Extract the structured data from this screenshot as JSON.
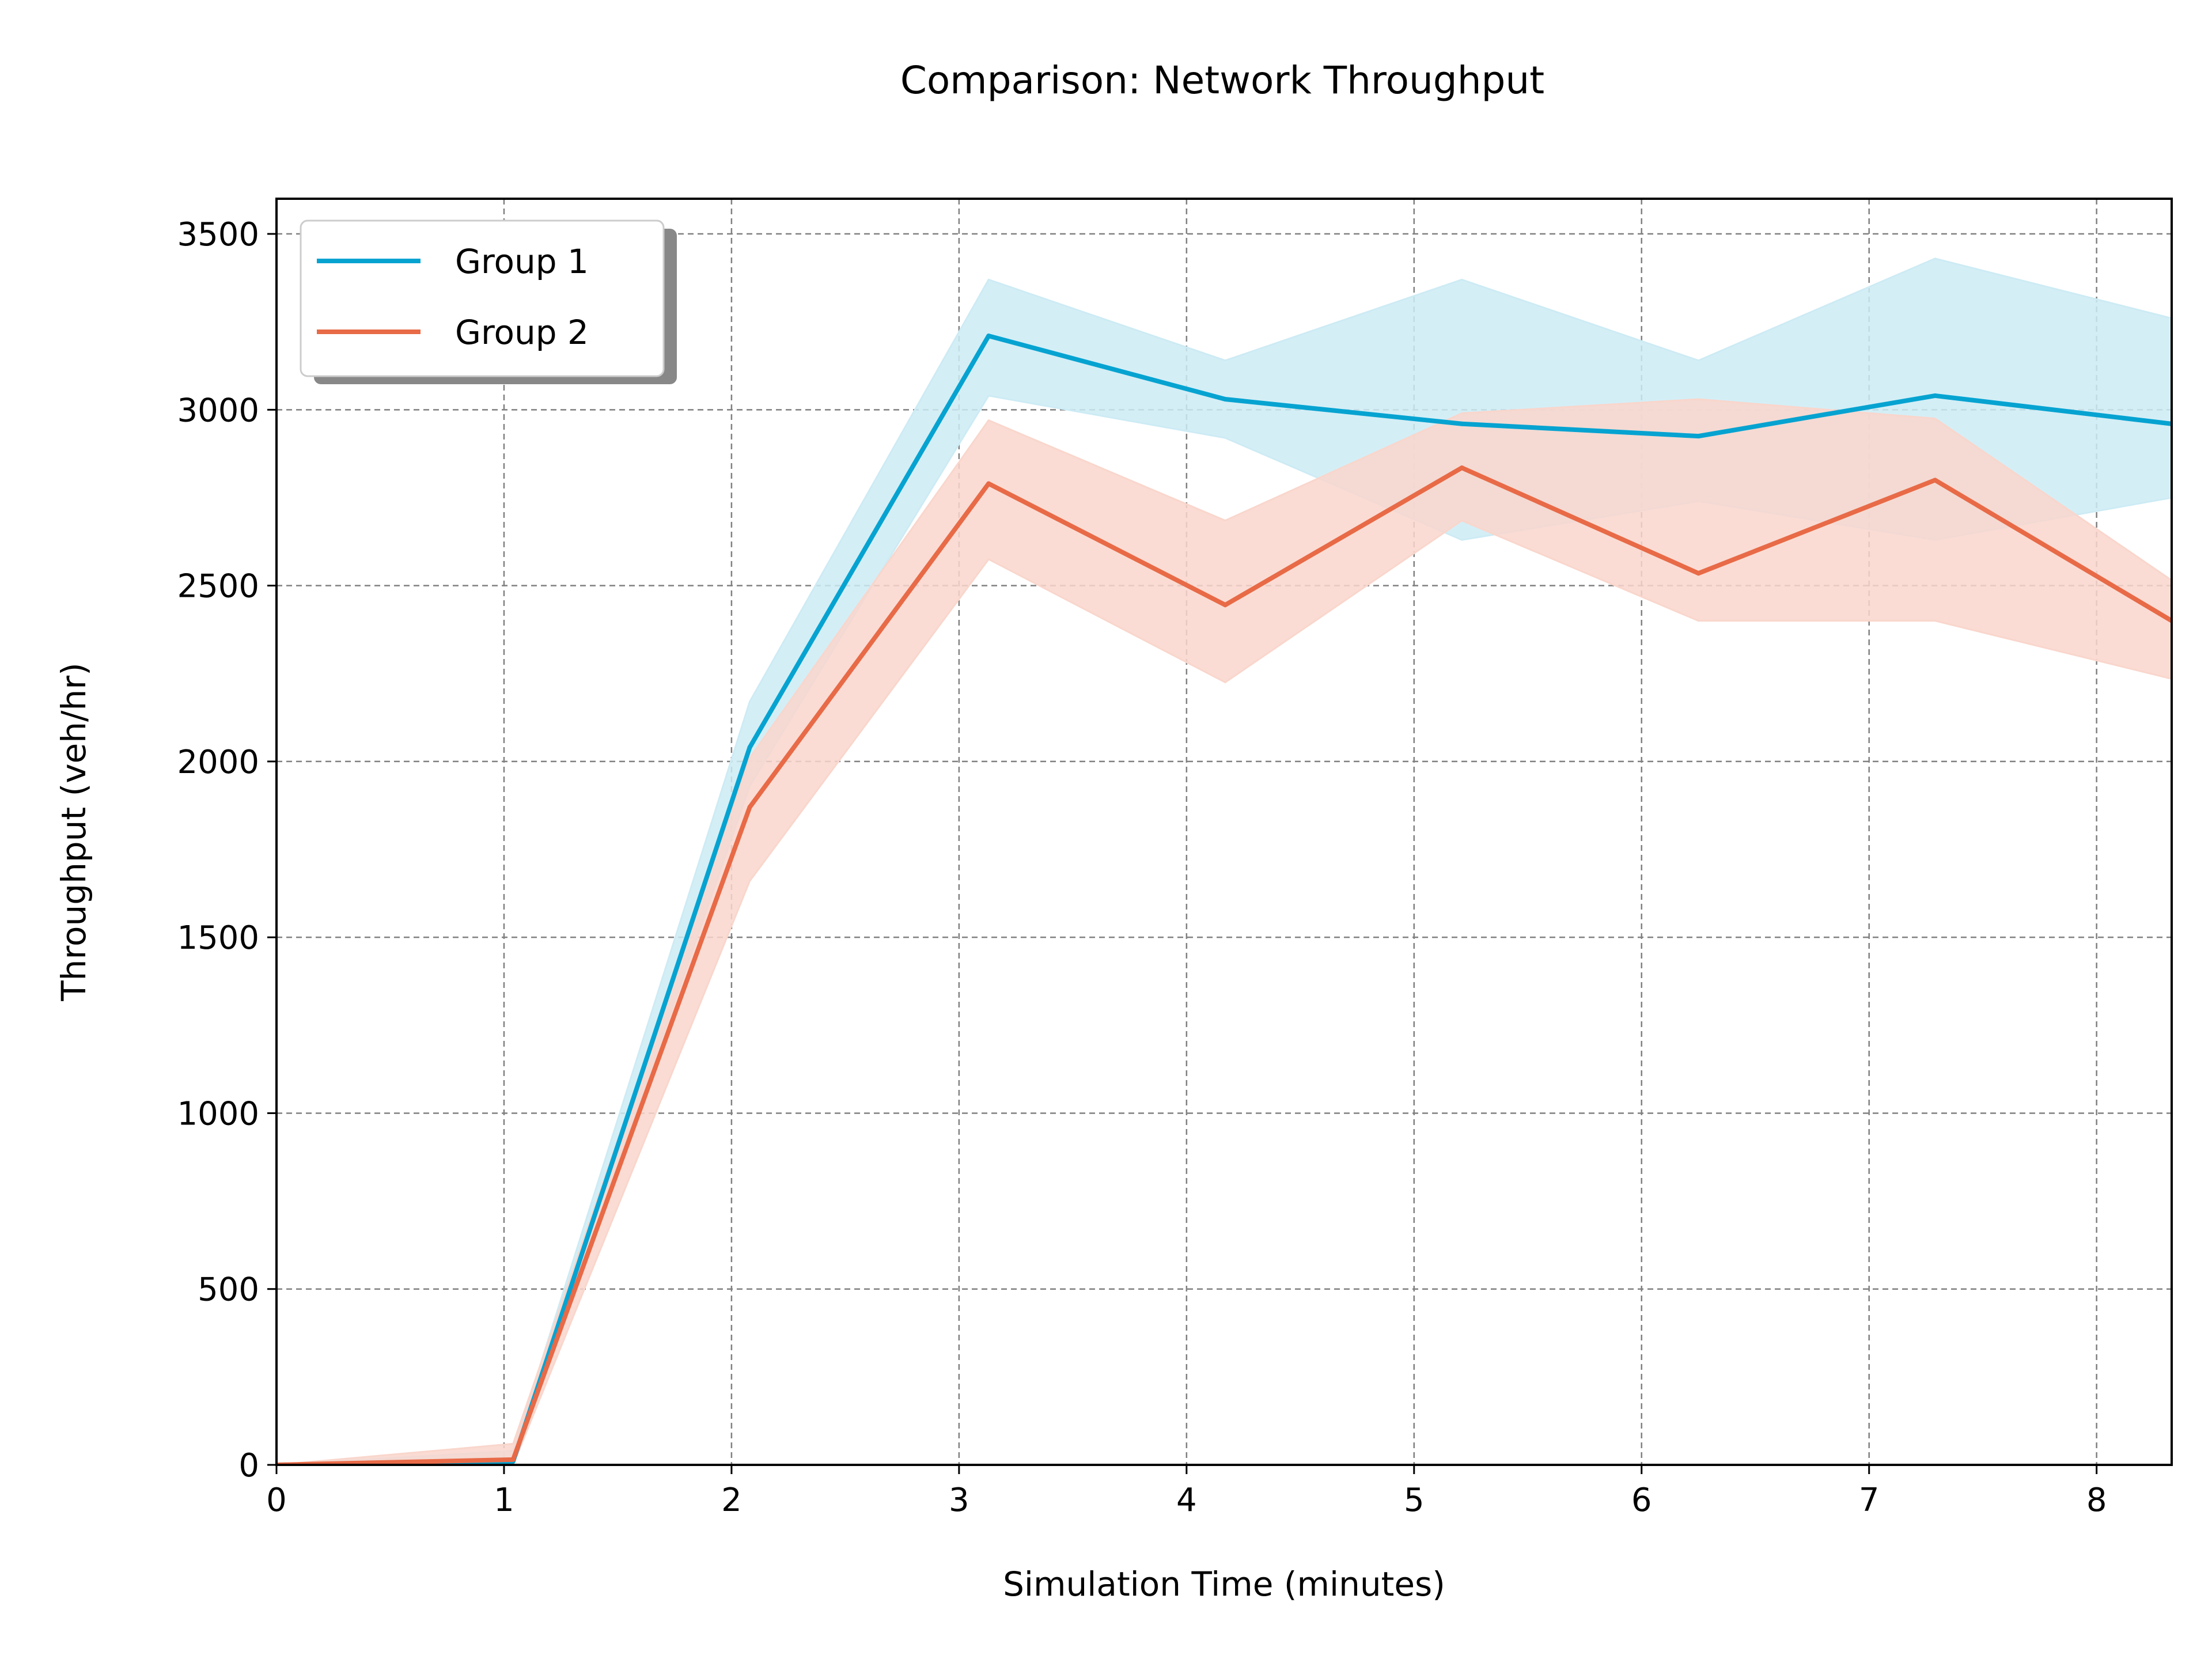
{
  "chart_data": {
    "type": "line",
    "title": "Comparison: Network Throughput",
    "xlabel": "Simulation Time (minutes)",
    "ylabel": "Throughput (veh/hr)",
    "xlim": [
      0,
      8.33
    ],
    "ylim": [
      0,
      3600
    ],
    "xticks": [
      0,
      1,
      2,
      3,
      4,
      5,
      6,
      7,
      8
    ],
    "yticks": [
      0,
      500,
      1000,
      1500,
      2000,
      2500,
      3000,
      3500
    ],
    "grid": true,
    "legend_position": "top-left",
    "x": [
      0,
      1.04,
      2.08,
      3.13,
      4.17,
      5.21,
      6.25,
      7.29,
      8.33
    ],
    "series": [
      {
        "name": "Group 1",
        "color": "#06a3d1",
        "band_color": "#cdebf4",
        "values": [
          0,
          10,
          2040,
          3210,
          3030,
          2960,
          2925,
          3040,
          2960
        ],
        "lower": [
          0,
          0,
          1930,
          3040,
          2920,
          2630,
          2740,
          2630,
          2750
        ],
        "upper": [
          0,
          40,
          2170,
          3370,
          3140,
          3370,
          3140,
          3430,
          3260
        ]
      },
      {
        "name": "Group 2",
        "color": "#e86a47",
        "band_color": "#f9d6cc",
        "values": [
          0,
          15,
          1870,
          2790,
          2445,
          2835,
          2535,
          2800,
          2400
        ],
        "lower": [
          0,
          0,
          1660,
          2575,
          2225,
          2685,
          2400,
          2400,
          2235
        ],
        "upper": [
          0,
          60,
          2010,
          2970,
          2685,
          2990,
          3030,
          2975,
          2515
        ]
      }
    ]
  }
}
